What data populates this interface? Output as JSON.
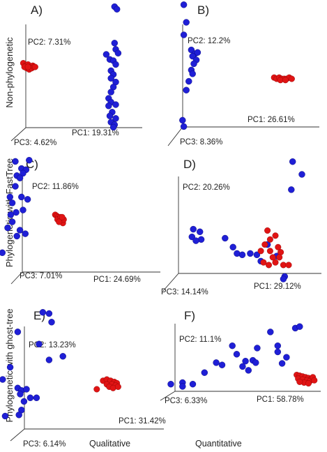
{
  "row_labels": [
    "Non-phylogenetic",
    "Phylogenetic with FastTree",
    "Phylogenetic with ghost-tree"
  ],
  "column_labels": [
    "Qualitative",
    "Quantitative"
  ],
  "colors": {
    "group_blue": "#1f1fd6",
    "group_red": "#e01414",
    "axis": "#333333"
  },
  "chart_data": [
    {
      "type": "scatter",
      "projection": "3d-pca",
      "panel": "A)",
      "axes": {
        "pc1": "PC1: 19.31%",
        "pc2": "PC2: 7.31%",
        "pc3": "PC3: 4.62%"
      },
      "series": [
        {
          "color": "blue",
          "points": [
            [
              0.79,
              0.98
            ],
            [
              0.81,
              0.96
            ],
            [
              0.79,
              0.69
            ],
            [
              0.8,
              0.64
            ],
            [
              0.82,
              0.61
            ],
            [
              0.72,
              0.6
            ],
            [
              0.75,
              0.56
            ],
            [
              0.78,
              0.55
            ],
            [
              0.8,
              0.52
            ],
            [
              0.76,
              0.47
            ],
            [
              0.78,
              0.44
            ],
            [
              0.76,
              0.41
            ],
            [
              0.8,
              0.38
            ],
            [
              0.78,
              0.34
            ],
            [
              0.76,
              0.3
            ],
            [
              0.74,
              0.25
            ],
            [
              0.76,
              0.22
            ],
            [
              0.8,
              0.2
            ],
            [
              0.74,
              0.19
            ],
            [
              0.77,
              0.14
            ],
            [
              0.75,
              0.11
            ],
            [
              0.8,
              0.09
            ],
            [
              0.76,
              0.06
            ],
            [
              0.79,
              0.04
            ],
            [
              0.78,
              0.02
            ]
          ]
        },
        {
          "color": "red",
          "points": [
            [
              0.02,
              0.53
            ],
            [
              0.04,
              0.51
            ],
            [
              0.06,
              0.52
            ],
            [
              0.08,
              0.5
            ],
            [
              0.1,
              0.51
            ],
            [
              0.05,
              0.49
            ],
            [
              0.07,
              0.48
            ],
            [
              0.03,
              0.5
            ],
            [
              0.09,
              0.49
            ],
            [
              0.11,
              0.5
            ],
            [
              0.06,
              0.5
            ],
            [
              0.12,
              0.5
            ]
          ]
        }
      ]
    },
    {
      "type": "scatter",
      "projection": "3d-pca",
      "panel": "B)",
      "axes": {
        "pc1": "PC1: 26.61%",
        "pc2": "PC2: 12.2%",
        "pc3": "PC3: 8.36%"
      },
      "series": [
        {
          "color": "blue",
          "points": [
            [
              0.02,
              0.99
            ],
            [
              0.04,
              0.85
            ],
            [
              0.02,
              0.75
            ],
            [
              0.08,
              0.63
            ],
            [
              0.11,
              0.6
            ],
            [
              0.13,
              0.61
            ],
            [
              0.09,
              0.58
            ],
            [
              0.12,
              0.55
            ],
            [
              0.1,
              0.52
            ],
            [
              0.08,
              0.47
            ],
            [
              0.09,
              0.44
            ],
            [
              0.06,
              0.38
            ],
            [
              0.04,
              0.31
            ],
            [
              0.01,
              0.07
            ],
            [
              0.02,
              0.02
            ]
          ]
        },
        {
          "color": "red",
          "points": [
            [
              0.74,
              0.41
            ],
            [
              0.76,
              0.4
            ],
            [
              0.78,
              0.41
            ],
            [
              0.8,
              0.4
            ],
            [
              0.82,
              0.4
            ],
            [
              0.84,
              0.4
            ],
            [
              0.86,
              0.41
            ],
            [
              0.88,
              0.4
            ],
            [
              0.79,
              0.39
            ],
            [
              0.83,
              0.39
            ]
          ]
        }
      ]
    },
    {
      "type": "scatter",
      "projection": "3d-pca",
      "panel": "C)",
      "axes": {
        "pc1": "PC1: 24.69%",
        "pc2": "PC2: 11.86%",
        "pc3": "PC3: 7.01%"
      },
      "series": [
        {
          "color": "blue",
          "points": [
            [
              0.2,
              0.98
            ],
            [
              0.38,
              0.99
            ],
            [
              0.28,
              0.92
            ],
            [
              0.34,
              0.91
            ],
            [
              0.3,
              0.88
            ],
            [
              0.22,
              0.86
            ],
            [
              0.26,
              0.84
            ],
            [
              0.2,
              0.77
            ],
            [
              0.13,
              0.68
            ],
            [
              0.16,
              0.63
            ],
            [
              0.28,
              0.68
            ],
            [
              0.36,
              0.66
            ],
            [
              0.21,
              0.55
            ],
            [
              0.14,
              0.53
            ],
            [
              0.3,
              0.57
            ],
            [
              0.16,
              0.47
            ],
            [
              0.26,
              0.4
            ],
            [
              0.1,
              0.42
            ],
            [
              0.22,
              0.35
            ],
            [
              0.33,
              0.37
            ],
            [
              0.03,
              0.21
            ]
          ]
        },
        {
          "color": "red",
          "points": [
            [
              0.72,
              0.53
            ],
            [
              0.74,
              0.52
            ],
            [
              0.76,
              0.51
            ],
            [
              0.78,
              0.49
            ],
            [
              0.8,
              0.48
            ],
            [
              0.82,
              0.46
            ],
            [
              0.75,
              0.49
            ],
            [
              0.79,
              0.51
            ],
            [
              0.83,
              0.49
            ],
            [
              0.77,
              0.47
            ],
            [
              0.81,
              0.51
            ]
          ]
        }
      ]
    },
    {
      "type": "scatter",
      "projection": "3d-pca",
      "panel": "D)",
      "axes": {
        "pc1": "PC1: 29.12%",
        "pc2": "PC2: 20.26%",
        "pc3": "PC3: 14.14%"
      },
      "series": [
        {
          "color": "blue",
          "points": [
            [
              0.83,
              0.98
            ],
            [
              0.9,
              0.88
            ],
            [
              0.82,
              0.76
            ],
            [
              0.08,
              0.45
            ],
            [
              0.13,
              0.43
            ],
            [
              0.07,
              0.39
            ],
            [
              0.14,
              0.37
            ],
            [
              0.1,
              0.36
            ],
            [
              0.32,
              0.38
            ],
            [
              0.38,
              0.31
            ],
            [
              0.41,
              0.26
            ],
            [
              0.45,
              0.25
            ],
            [
              0.51,
              0.26
            ],
            [
              0.56,
              0.25
            ],
            [
              0.64,
              0.33
            ],
            [
              0.71,
              0.24
            ],
            [
              0.59,
              0.2
            ],
            [
              0.77,
              0.08
            ],
            [
              0.76,
              0.06
            ]
          ]
        },
        {
          "color": "red",
          "points": [
            [
              0.64,
              0.44
            ],
            [
              0.7,
              0.4
            ],
            [
              0.66,
              0.37
            ],
            [
              0.62,
              0.33
            ],
            [
              0.72,
              0.31
            ],
            [
              0.59,
              0.28
            ],
            [
              0.66,
              0.28
            ],
            [
              0.74,
              0.27
            ],
            [
              0.68,
              0.23
            ],
            [
              0.61,
              0.19
            ],
            [
              0.65,
              0.17
            ],
            [
              0.7,
              0.19
            ],
            [
              0.76,
              0.17
            ],
            [
              0.8,
              0.17
            ],
            [
              0.73,
              0.23
            ]
          ]
        }
      ]
    },
    {
      "type": "scatter",
      "projection": "3d-pca",
      "panel": "E)",
      "axes": {
        "pc1": "PC1: 31.42%",
        "pc2": "PC2: 13.23%",
        "pc3": "PC3: 6.14%"
      },
      "series": [
        {
          "color": "blue",
          "points": [
            [
              0.33,
              0.99
            ],
            [
              0.38,
              0.98
            ],
            [
              0.4,
              0.91
            ],
            [
              0.13,
              0.83
            ],
            [
              0.3,
              0.73
            ],
            [
              0.49,
              0.63
            ],
            [
              0.38,
              0.6
            ],
            [
              0.07,
              0.54
            ],
            [
              0.01,
              0.44
            ],
            [
              0.13,
              0.37
            ],
            [
              0.16,
              0.35
            ],
            [
              0.2,
              0.36
            ],
            [
              0.15,
              0.32
            ],
            [
              0.23,
              0.29
            ],
            [
              0.18,
              0.26
            ],
            [
              0.28,
              0.29
            ],
            [
              0.16,
              0.19
            ],
            [
              0.14,
              0.15
            ],
            [
              0.03,
              0.14
            ]
          ]
        },
        {
          "color": "red",
          "points": [
            [
              0.81,
              0.43
            ],
            [
              0.84,
              0.44
            ],
            [
              0.87,
              0.43
            ],
            [
              0.9,
              0.42
            ],
            [
              0.92,
              0.41
            ],
            [
              0.84,
              0.4
            ],
            [
              0.88,
              0.4
            ],
            [
              0.91,
              0.39
            ],
            [
              0.86,
              0.38
            ],
            [
              0.89,
              0.37
            ],
            [
              0.93,
              0.38
            ],
            [
              0.76,
              0.36
            ]
          ]
        }
      ]
    },
    {
      "type": "scatter",
      "projection": "3d-pca",
      "panel": "F)",
      "axes": {
        "pc1": "PC1: 58.78%",
        "pc2": "PC2: 11.1%",
        "pc3": "PC3: 6.33%"
      },
      "series": [
        {
          "color": "blue",
          "points": [
            [
              0.0,
              0.13
            ],
            [
              0.08,
              0.15
            ],
            [
              0.08,
              0.1
            ],
            [
              0.15,
              0.13
            ],
            [
              0.23,
              0.28
            ],
            [
              0.31,
              0.41
            ],
            [
              0.35,
              0.38
            ],
            [
              0.42,
              0.63
            ],
            [
              0.45,
              0.52
            ],
            [
              0.51,
              0.43
            ],
            [
              0.49,
              0.36
            ],
            [
              0.56,
              0.44
            ],
            [
              0.53,
              0.31
            ],
            [
              0.58,
              0.41
            ],
            [
              0.59,
              0.6
            ],
            [
              0.68,
              0.81
            ],
            [
              0.73,
              0.55
            ],
            [
              0.76,
              0.4
            ],
            [
              0.79,
              0.48
            ],
            [
              0.73,
              0.63
            ],
            [
              0.85,
              0.86
            ],
            [
              0.88,
              0.88
            ]
          ]
        },
        {
          "color": "red",
          "points": [
            [
              0.86,
              0.25
            ],
            [
              0.88,
              0.24
            ],
            [
              0.9,
              0.23
            ],
            [
              0.92,
              0.22
            ],
            [
              0.94,
              0.21
            ],
            [
              0.96,
              0.2
            ],
            [
              0.87,
              0.2
            ],
            [
              0.9,
              0.19
            ],
            [
              0.93,
              0.18
            ],
            [
              0.95,
              0.17
            ],
            [
              0.91,
              0.15
            ],
            [
              0.94,
              0.14
            ],
            [
              0.88,
              0.16
            ],
            [
              0.97,
              0.22
            ],
            [
              0.98,
              0.18
            ]
          ]
        }
      ]
    }
  ]
}
